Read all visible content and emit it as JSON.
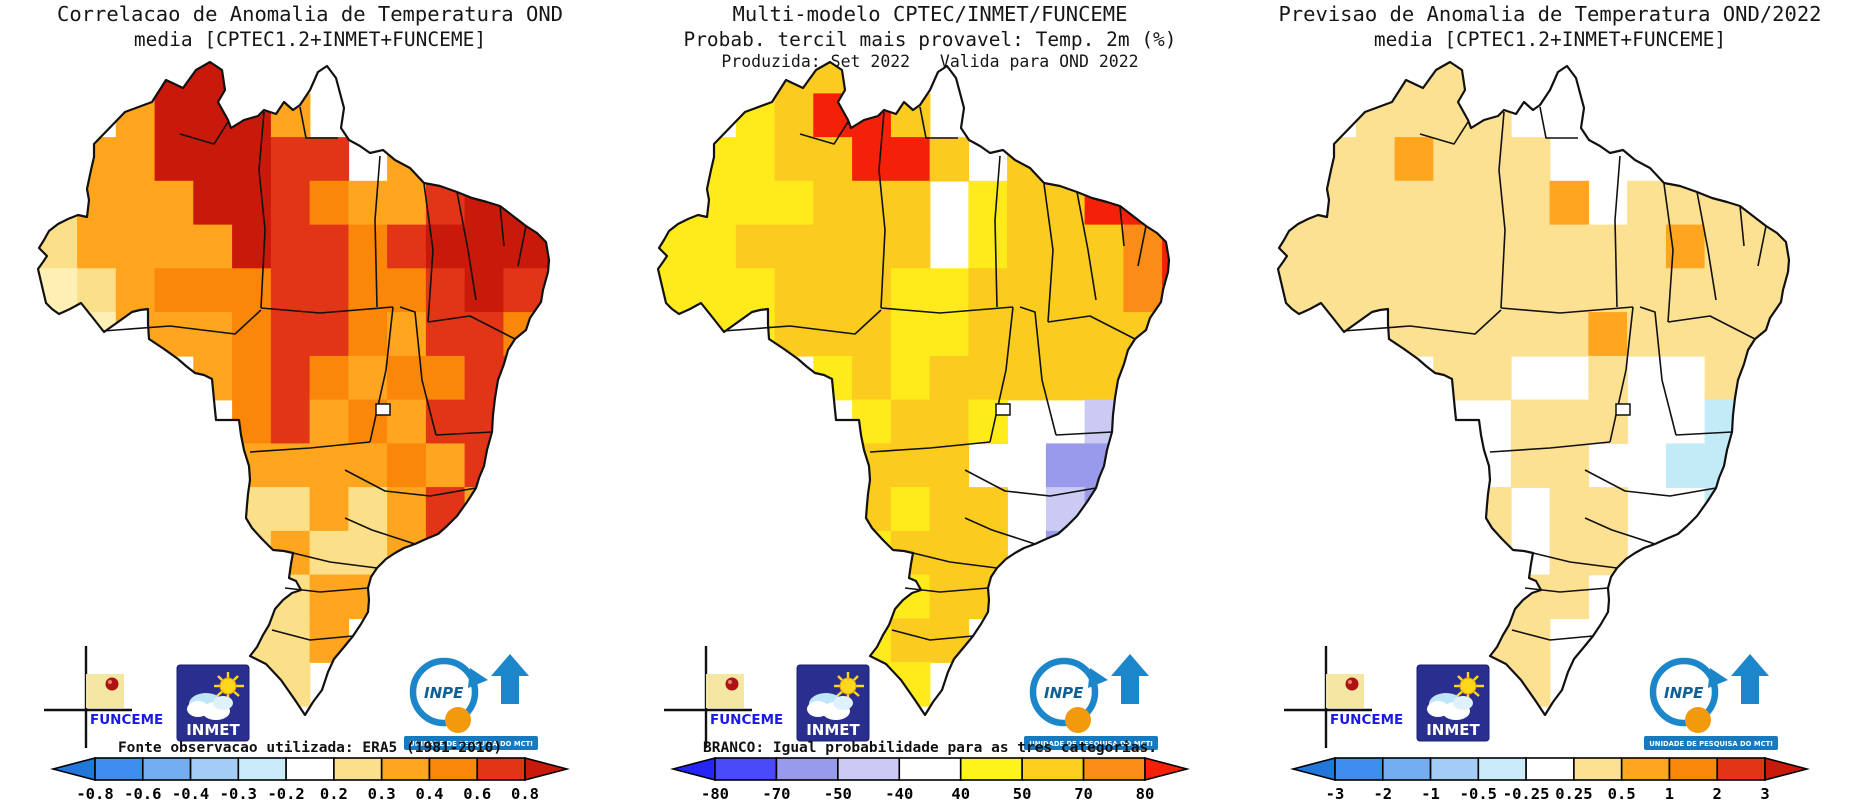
{
  "logos": {
    "funceme": {
      "label": "FUNCEME",
      "note_color": "#F4E7A3",
      "pin_color": "#AD1313",
      "text_color": "#1A1AE8"
    },
    "inmet": {
      "label": "INMET",
      "bg": "#2A2F8F",
      "sun_color": "#FFD81E"
    },
    "inpe": {
      "label": "INPE",
      "banner": "UNIDADE DE PESQUISA DO MCTI",
      "blue": "#1B86C9",
      "orange": "#F29A0C"
    }
  },
  "chart_data": [
    {
      "type": "heatmap",
      "region": "Brazil",
      "title": "Correlacao de Anomalia de Temperatura OND",
      "subtitle": "media [CPTEC1.2+INMET+FUNCEME]",
      "subtitle2": "",
      "note": "Fonte observacao utilizada: ERA5 (1981-2010)",
      "colorbar": {
        "ticks": [
          "-0.8",
          "-0.6",
          "-0.4",
          "-0.3",
          "-0.2",
          "0.2",
          "0.3",
          "0.4",
          "0.6",
          "0.8"
        ],
        "inner_colors": [
          "#3F8DF0",
          "#74AEF2",
          "#A3CDF4",
          "#C9ECF8",
          "#FFFFFF",
          "#FBE089",
          "#FFA51E",
          "#FB8708",
          "#E23517"
        ],
        "arrow_left_color": "#2277DC",
        "arrow_right_color": "#C9190B"
      },
      "grid": {
        "palette": {
          "R": "#C9190B",
          "r": "#E23517",
          "O": "#FB8708",
          "o": "#FFA51E",
          "k": "#FBE089",
          "y": "#FEF0B5",
          "w": "#FFFFFF"
        },
        "rows": [
          "....RRR.........",
          "...oRRRo...rR...",
          "..ooRRRrr.orrRR.",
          ".koooRRrOoorRRRR",
          ".kooooRrrOrRRRRr",
          ".ykoOOOrrOOrRrr.",
          ".yyoooOrrOorrOr.",
          "..ko.oOrOoOOrro.",
          "....wwOroOorro..",
          "....wwooooOoro..",
          ".....okkokoroo..",
          "......kokkoro...",
          ".....okkoow.w...",
          ".....okko.w.....",
          "......kk........",
          "................"
        ]
      }
    },
    {
      "type": "heatmap",
      "region": "Brazil",
      "title": "Multi-modelo CPTEC/INMET/FUNCEME",
      "subtitle": "Probab. tercil mais provavel: Temp. 2m (%)",
      "subtitle2": "Produzida: Set 2022   Valida para OND 2022",
      "note": "BRANCO: Igual probabilidade para as tres categorias.",
      "colorbar": {
        "ticks": [
          "-80",
          "-70",
          "-50",
          "-40",
          "40",
          "50",
          "70",
          "80"
        ],
        "inner_colors": [
          "#4A4AF8",
          "#9A9AEC",
          "#CACAF4",
          "#FFFFFF",
          "#FFF31C",
          "#FCCF1E",
          "#FB8C16"
        ],
        "arrow_left_color": "#2525F8",
        "arrow_right_color": "#F52008"
      },
      "grid": {
        "palette": {
          "r": "#F52008",
          "o": "#FB8C16",
          "g": "#FBCB1F",
          "y": "#FFEB1C",
          "w": "#FFFFFF",
          "p": "#CACAF4",
          "P": "#9A9AEC"
        },
        "rows": [
          "....ggr.........",
          "...ygrrg...wr...",
          "..yyggrrg.grrro.",
          ".yyyyggg.yggrrro",
          ".yygggggwygggoro",
          ".yyygggyyggggorg",
          ".yyygggyygggggg.",
          "..yy.ygyggggggy.",
          "..y.wwyggywwppg.",
          "....wygggwwPPp..",
          ".....ygyggwpPPp.",
          "......ygggwPPp..",
          ".....ygyggww.w..",
          ".....yygg.w.....",
          "......yy........",
          "................"
        ]
      }
    },
    {
      "type": "heatmap",
      "region": "Brazil",
      "title": "Previsao de Anomalia de Temperatura OND/2022",
      "subtitle": "media [CPTEC1.2+INMET+FUNCEME]",
      "subtitle2": "",
      "note": "",
      "colorbar": {
        "ticks": [
          "-3",
          "-2",
          "-1",
          "-0.5",
          "-0.25",
          "0.25",
          "0.5",
          "1",
          "2",
          "3"
        ],
        "inner_colors": [
          "#3F8DF0",
          "#74AEF2",
          "#A3CDF4",
          "#C9ECF8",
          "#FFFFFF",
          "#FBE191",
          "#FFA51E",
          "#FB8708",
          "#E23517"
        ],
        "arrow_left_color": "#2277DC",
        "arrow_right_color": "#C9190B"
      },
      "grid": {
        "palette": {
          "k": "#FBE191",
          "o": "#FFA51E",
          "c": "#C2EBF7",
          "w": "#FFFFFF"
        },
        "rows": [
          "....kkk.........",
          "...kkkk....wk...",
          "..kkokkkw.wkkk..",
          ".kkkkkkkowkkkkkk",
          ".kkkkkkkkkkokkkk",
          ".kkkkkkkkkkkkkk.",
          ".kkkkkkkkokkkkk.",
          "..kk.kkwwkwwkkk.",
          "....wwwkkkwwcck.",
          "....wkwkkwwccc..",
          ".....kkwkkwwcc..",
          "......kwkkww....",
          ".....wkkkww.w...",
          ".....kkkw.w.....",
          "......kk........",
          "................"
        ]
      }
    }
  ]
}
